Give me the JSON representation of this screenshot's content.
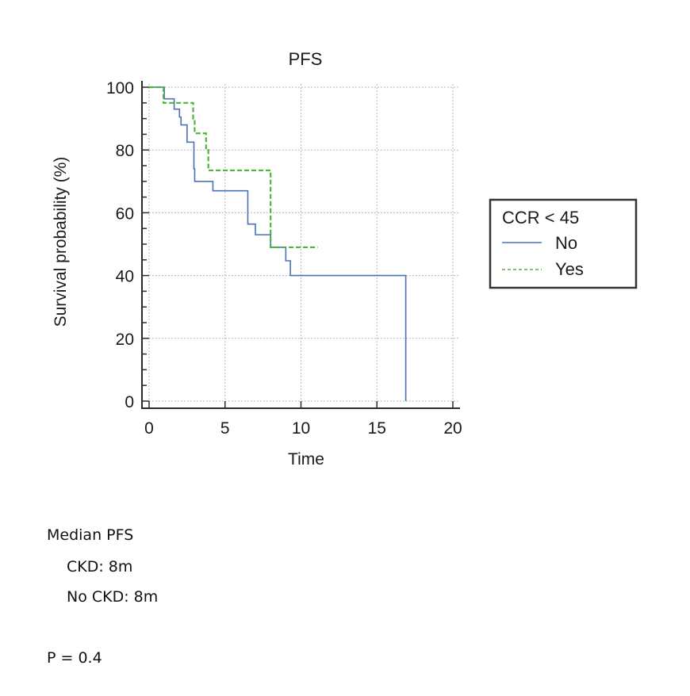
{
  "chart_data": {
    "type": "line",
    "subtype": "kaplan-meier step",
    "title": "PFS",
    "xlabel": "Time",
    "ylabel": "Survival probability (%)",
    "xlim": [
      0,
      20
    ],
    "ylim": [
      0,
      100
    ],
    "xticks": [
      0,
      5,
      10,
      15,
      20
    ],
    "yticks": [
      0,
      20,
      40,
      60,
      80,
      100
    ],
    "grid": true,
    "legend": {
      "title": "CCR < 45",
      "placement": "right",
      "entries": [
        {
          "label": "No",
          "style": "solid",
          "color": "#4a72b8"
        },
        {
          "label": "Yes",
          "style": "dashed",
          "color": "#4fb33a"
        }
      ]
    },
    "series": [
      {
        "name": "No",
        "color": "#4a72b8",
        "style": "solid",
        "steps": [
          [
            0,
            100
          ],
          [
            1.0,
            96.3
          ],
          [
            1.65,
            93.0
          ],
          [
            2.0,
            90.5
          ],
          [
            2.1,
            88.0
          ],
          [
            2.5,
            82.5
          ],
          [
            2.95,
            74.0
          ],
          [
            3.0,
            70.0
          ],
          [
            4.2,
            67.0
          ],
          [
            6.5,
            56.4
          ],
          [
            7.0,
            53.0
          ],
          [
            8.0,
            49.0
          ],
          [
            9.0,
            44.7
          ],
          [
            9.3,
            40.0
          ],
          [
            16.9,
            0
          ]
        ],
        "end_time": 16.9
      },
      {
        "name": "Yes",
        "color": "#4fb33a",
        "style": "dashed",
        "steps": [
          [
            0,
            100
          ],
          [
            0.95,
            95.0
          ],
          [
            2.9,
            90.0
          ],
          [
            3.0,
            85.3
          ],
          [
            3.75,
            80.0
          ],
          [
            3.9,
            73.5
          ],
          [
            8.0,
            49.0
          ]
        ],
        "end_time": 11.1
      }
    ]
  },
  "notes": {
    "heading": "Median PFS",
    "ckd": "CKD: 8m",
    "no_ckd": "No CKD: 8m",
    "p_value": "P = 0.4"
  }
}
